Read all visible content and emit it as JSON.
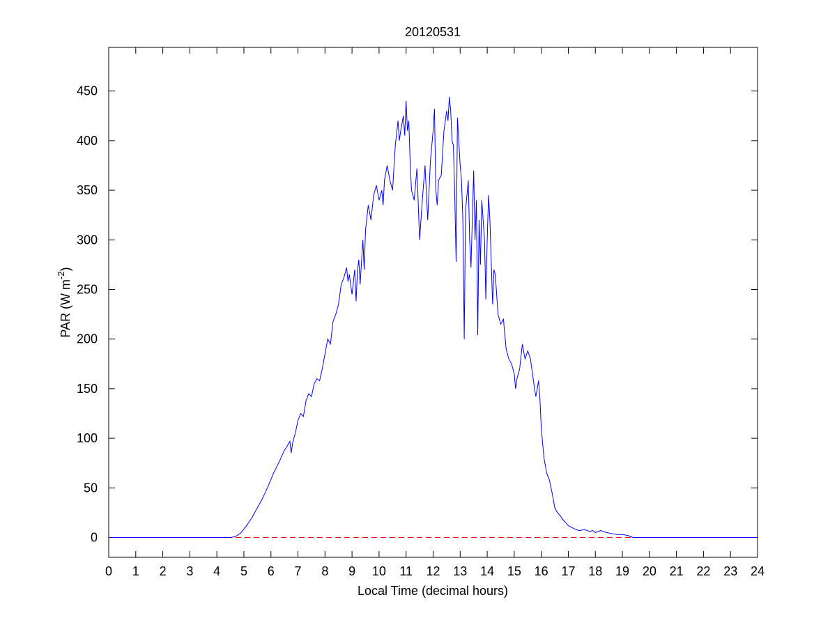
{
  "chart_data": {
    "type": "line",
    "title": "20120531",
    "xlabel": "Local Time (decimal hours)",
    "ylabel": [
      "PAR (W m",
      "-2",
      ")"
    ],
    "xlim": [
      0,
      24
    ],
    "xticks": [
      0,
      1,
      2,
      3,
      4,
      5,
      6,
      7,
      8,
      9,
      10,
      11,
      12,
      13,
      14,
      15,
      16,
      17,
      18,
      19,
      20,
      21,
      22,
      23,
      24
    ],
    "ylim": [
      -20,
      494
    ],
    "yticks": [
      0,
      50,
      100,
      150,
      200,
      250,
      300,
      350,
      400,
      450
    ],
    "reference_line": {
      "value": 0,
      "color": "#ff0000",
      "dash": true
    },
    "series": [
      {
        "color": "#0000ff",
        "x": [
          0,
          4.5,
          4.7,
          4.9,
          5.1,
          5.3,
          5.5,
          5.7,
          5.9,
          6.1,
          6.3,
          6.5,
          6.6,
          6.7,
          6.75,
          6.8,
          6.9,
          7.0,
          7.1,
          7.2,
          7.3,
          7.4,
          7.5,
          7.6,
          7.7,
          7.8,
          7.9,
          8.0,
          8.1,
          8.2,
          8.3,
          8.4,
          8.5,
          8.6,
          8.7,
          8.8,
          8.85,
          8.9,
          9.0,
          9.1,
          9.15,
          9.2,
          9.25,
          9.3,
          9.4,
          9.45,
          9.5,
          9.6,
          9.7,
          9.8,
          9.9,
          10.0,
          10.1,
          10.15,
          10.2,
          10.3,
          10.4,
          10.5,
          10.6,
          10.7,
          10.75,
          10.8,
          10.9,
          10.95,
          11.0,
          11.05,
          11.1,
          11.15,
          11.2,
          11.3,
          11.4,
          11.5,
          11.6,
          11.7,
          11.8,
          11.9,
          12.0,
          12.05,
          12.1,
          12.15,
          12.2,
          12.3,
          12.4,
          12.5,
          12.55,
          12.6,
          12.65,
          12.7,
          12.75,
          12.8,
          12.85,
          12.9,
          13.0,
          13.05,
          13.1,
          13.15,
          13.2,
          13.3,
          13.35,
          13.4,
          13.5,
          13.55,
          13.6,
          13.65,
          13.7,
          13.75,
          13.8,
          13.9,
          13.95,
          14.0,
          14.05,
          14.1,
          14.2,
          14.25,
          14.3,
          14.4,
          14.5,
          14.6,
          14.7,
          14.8,
          14.9,
          15.0,
          15.05,
          15.1,
          15.2,
          15.3,
          15.4,
          15.5,
          15.6,
          15.7,
          15.75,
          15.8,
          15.9,
          15.95,
          16.0,
          16.1,
          16.2,
          16.3,
          16.4,
          16.5,
          16.6,
          16.7,
          16.8,
          16.9,
          17.0,
          17.2,
          17.4,
          17.6,
          17.8,
          17.9,
          18.0,
          18.2,
          18.4,
          18.6,
          18.8,
          19.0,
          19.2,
          19.4,
          19.6,
          24
        ],
        "values": [
          0,
          0,
          1,
          5,
          12,
          20,
          30,
          40,
          52,
          65,
          76,
          88,
          92,
          97,
          85,
          95,
          105,
          118,
          125,
          122,
          138,
          145,
          142,
          155,
          160,
          158,
          170,
          185,
          200,
          195,
          218,
          225,
          235,
          255,
          262,
          272,
          258,
          265,
          245,
          270,
          238,
          268,
          280,
          255,
          300,
          270,
          310,
          335,
          320,
          345,
          355,
          340,
          350,
          335,
          360,
          375,
          360,
          350,
          395,
          420,
          400,
          410,
          425,
          405,
          440,
          410,
          420,
          378,
          350,
          340,
          372,
          300,
          340,
          375,
          320,
          380,
          410,
          432,
          350,
          335,
          360,
          365,
          410,
          430,
          420,
          444,
          430,
          400,
          395,
          345,
          278,
          423,
          375,
          360,
          320,
          200,
          330,
          360,
          300,
          272,
          370,
          300,
          340,
          204,
          320,
          275,
          340,
          300,
          240,
          300,
          345,
          320,
          235,
          270,
          265,
          225,
          215,
          220,
          190,
          180,
          175,
          165,
          150,
          160,
          170,
          195,
          180,
          188,
          180,
          160,
          150,
          142,
          158,
          140,
          110,
          80,
          65,
          58,
          45,
          30,
          25,
          22,
          18,
          15,
          12,
          9,
          7,
          8,
          6,
          7,
          5,
          7,
          5,
          4,
          3,
          3,
          2,
          0,
          0,
          0
        ]
      }
    ]
  }
}
